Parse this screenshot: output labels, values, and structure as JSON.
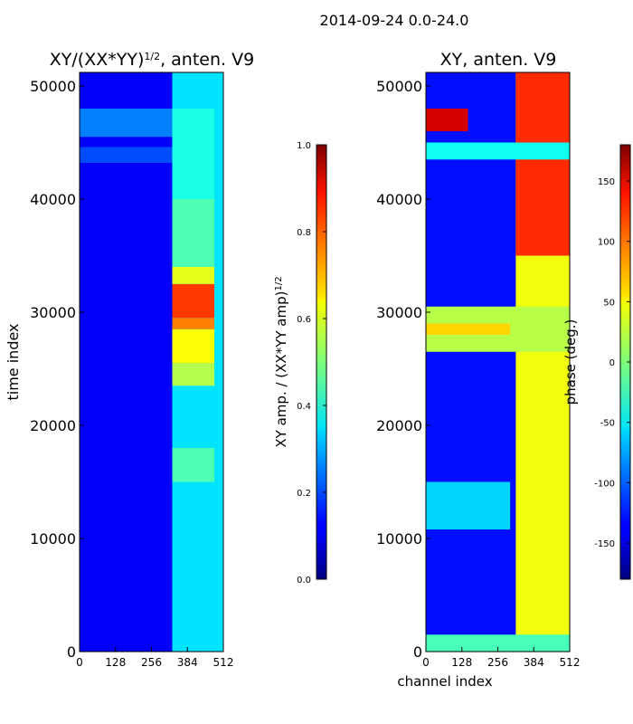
{
  "figure": {
    "title": "2014-09-24 0.0-24.0"
  },
  "chart_data": [
    {
      "type": "heatmap",
      "title_main": "XY/(XX*YY)",
      "title_exp": "1/2",
      "title_rest": ", anten. V9",
      "xlabel": "",
      "ylabel": "time index",
      "x_ticks": [
        "0",
        "128",
        "256",
        "384",
        "512"
      ],
      "x_tick_values": [
        0,
        128,
        256,
        384,
        512
      ],
      "xlim": [
        0,
        512
      ],
      "y_ticks": [
        "0",
        "10000",
        "20000",
        "30000",
        "40000",
        "50000"
      ],
      "y_tick_values": [
        0,
        10000,
        20000,
        30000,
        40000,
        50000
      ],
      "ylim": [
        0,
        51200
      ],
      "colorbar": {
        "label_main": "XY amp. / (XX*YY amp)",
        "label_exp": "1/2",
        "ticks": [
          "0.0",
          "0.2",
          "0.4",
          "0.6",
          "0.8",
          "1.0"
        ],
        "tick_values": [
          0.0,
          0.2,
          0.4,
          0.6,
          0.8,
          1.0
        ],
        "range": [
          0.0,
          1.0
        ]
      },
      "regions": [
        {
          "x": [
            0,
            512
          ],
          "y": [
            0,
            51200
          ],
          "value": 0.12
        },
        {
          "x": [
            0,
            512
          ],
          "y": [
            45500,
            48000
          ],
          "value": 0.25
        },
        {
          "x": [
            0,
            512
          ],
          "y": [
            43200,
            44600
          ],
          "value": 0.2
        },
        {
          "x": [
            330,
            512
          ],
          "y": [
            0,
            51200
          ],
          "value": 0.35
        },
        {
          "x": [
            330,
            480
          ],
          "y": [
            23500,
            25500
          ],
          "value": 0.55
        },
        {
          "x": [
            330,
            480
          ],
          "y": [
            25500,
            28500
          ],
          "value": 0.62
        },
        {
          "x": [
            330,
            480
          ],
          "y": [
            28500,
            29500
          ],
          "value": 0.75
        },
        {
          "x": [
            330,
            480
          ],
          "y": [
            29500,
            32500
          ],
          "value": 0.82
        },
        {
          "x": [
            330,
            480
          ],
          "y": [
            32500,
            34000
          ],
          "value": 0.6
        },
        {
          "x": [
            330,
            480
          ],
          "y": [
            34000,
            40000
          ],
          "value": 0.45
        },
        {
          "x": [
            330,
            480
          ],
          "y": [
            40000,
            48000
          ],
          "value": 0.4
        },
        {
          "x": [
            330,
            480
          ],
          "y": [
            15000,
            18000
          ],
          "value": 0.45
        }
      ]
    },
    {
      "type": "heatmap",
      "title_main": "XY, anten. V9",
      "xlabel": "channel index",
      "ylabel": "",
      "x_ticks": [
        "0",
        "128",
        "256",
        "384",
        "512"
      ],
      "x_tick_values": [
        0,
        128,
        256,
        384,
        512
      ],
      "xlim": [
        0,
        512
      ],
      "y_ticks": [
        "0",
        "10000",
        "20000",
        "30000",
        "40000",
        "50000"
      ],
      "y_tick_values": [
        0,
        10000,
        20000,
        30000,
        40000,
        50000
      ],
      "ylim": [
        0,
        51200
      ],
      "colorbar": {
        "label_main": "phase (deg.)",
        "ticks": [
          "-150",
          "-100",
          "-50",
          "0",
          "50",
          "100",
          "150"
        ],
        "tick_values": [
          -150,
          -100,
          -50,
          0,
          50,
          100,
          150
        ],
        "range": [
          -180,
          180
        ]
      },
      "regions": [
        {
          "x": [
            0,
            512
          ],
          "y": [
            0,
            51200
          ],
          "value": -130
        },
        {
          "x": [
            320,
            512
          ],
          "y": [
            0,
            51200
          ],
          "value": 40
        },
        {
          "x": [
            320,
            512
          ],
          "y": [
            35000,
            51200
          ],
          "value": 120
        },
        {
          "x": [
            0,
            512
          ],
          "y": [
            0,
            1500
          ],
          "value": -20
        },
        {
          "x": [
            0,
            300
          ],
          "y": [
            10800,
            15000
          ],
          "value": -60
        },
        {
          "x": [
            0,
            512
          ],
          "y": [
            26500,
            30500
          ],
          "value": 20
        },
        {
          "x": [
            0,
            300
          ],
          "y": [
            28000,
            29000
          ],
          "value": 60
        },
        {
          "x": [
            0,
            512
          ],
          "y": [
            43500,
            45000
          ],
          "value": -40
        },
        {
          "x": [
            0,
            150
          ],
          "y": [
            46000,
            48000
          ],
          "value": 150
        }
      ]
    }
  ]
}
